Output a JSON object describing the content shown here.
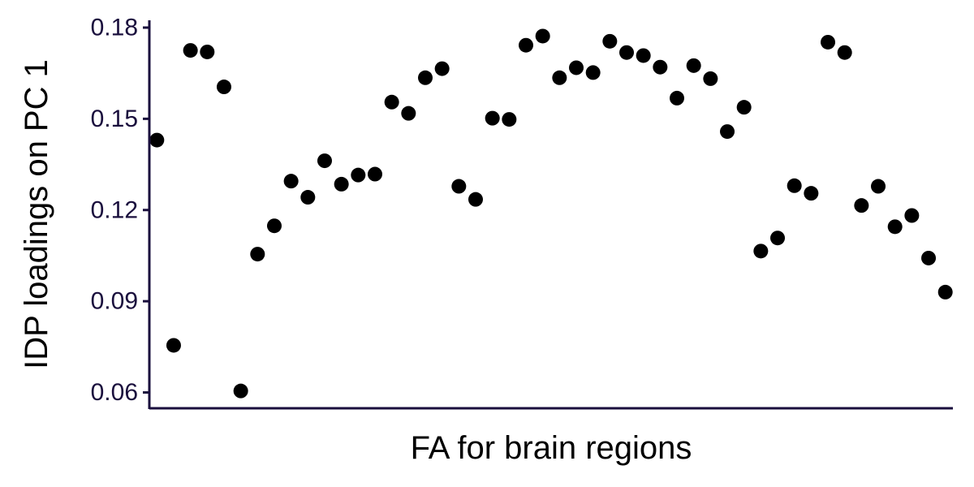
{
  "chart_data": {
    "type": "scatter",
    "title": "",
    "xlabel": "FA for brain regions",
    "ylabel": "IDP loadings on PC 1",
    "x": [
      1,
      2,
      3,
      4,
      5,
      6,
      7,
      8,
      9,
      10,
      11,
      12,
      13,
      14,
      15,
      16,
      17,
      18,
      19,
      20,
      21,
      22,
      23,
      24,
      25,
      26,
      27,
      28,
      29,
      30,
      31,
      32,
      33,
      34,
      35,
      36,
      37,
      38,
      39,
      40,
      41,
      42,
      43,
      44,
      45,
      46,
      47,
      48
    ],
    "y": [
      0.143,
      0.0755,
      0.1725,
      0.172,
      0.1605,
      0.0605,
      0.1055,
      0.1148,
      0.1295,
      0.1242,
      0.1362,
      0.1285,
      0.1315,
      0.1318,
      0.1555,
      0.1518,
      0.1635,
      0.1665,
      0.1278,
      0.1235,
      0.1502,
      0.1498,
      0.1742,
      0.1772,
      0.1635,
      0.1668,
      0.1652,
      0.1755,
      0.1718,
      0.1708,
      0.167,
      0.1568,
      0.1675,
      0.1632,
      0.1458,
      0.1538,
      0.1065,
      0.1108,
      0.128,
      0.1255,
      0.1752,
      0.1718,
      0.1215,
      0.1278,
      0.1145,
      0.1182,
      0.1042,
      0.093
    ],
    "xlim": [
      0.55,
      48.45
    ],
    "ylim": [
      0.0548,
      0.1824
    ],
    "y_ticks": [
      0.06,
      0.09,
      0.12,
      0.15,
      0.18
    ],
    "y_tick_labels": [
      "0.06",
      "0.09",
      "0.12",
      "0.15",
      "0.18"
    ],
    "grid": false,
    "colors": {
      "points": "#000000",
      "axis": "#1a0f3d",
      "tick_labels": "#1a0f3d"
    }
  }
}
